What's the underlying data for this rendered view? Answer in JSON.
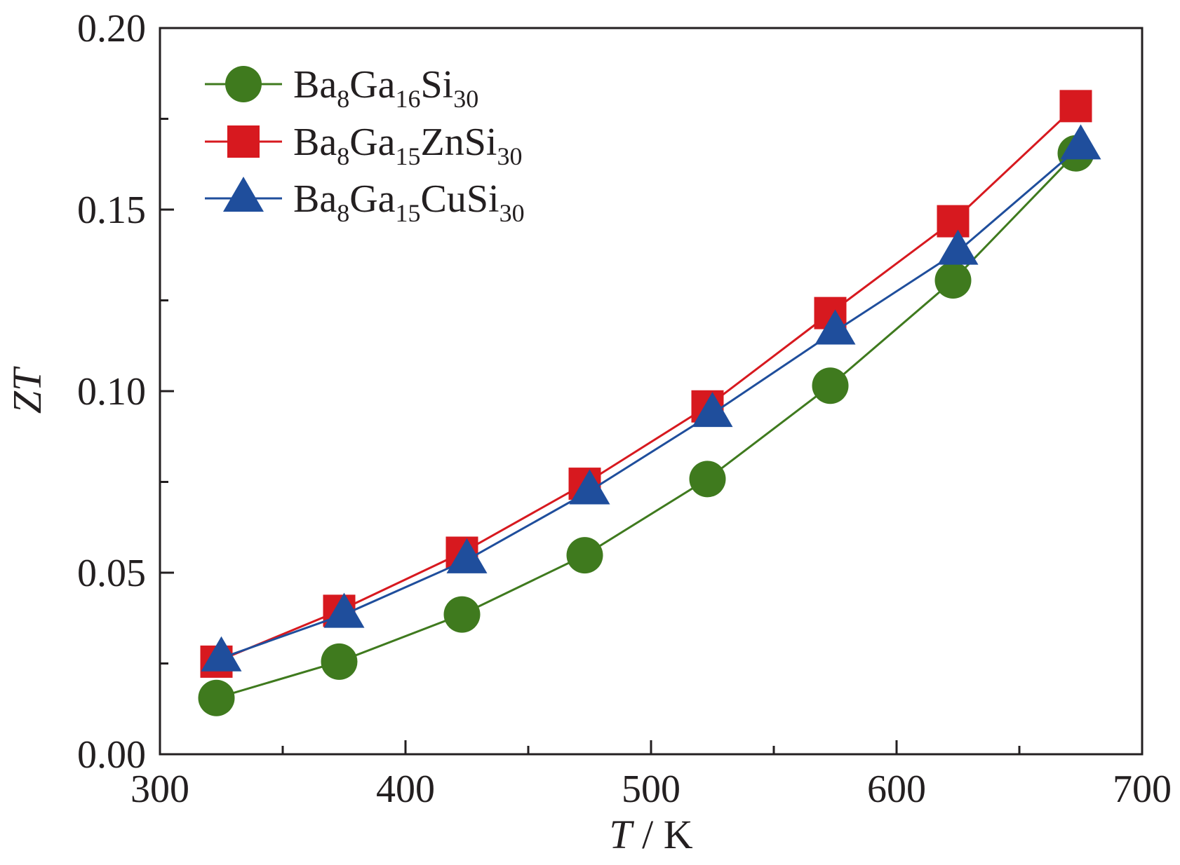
{
  "chart_data": {
    "type": "line",
    "xlabel": {
      "italic": "T",
      "rest": " / K"
    },
    "ylabel": "ZT",
    "xlim": [
      300,
      700
    ],
    "ylim": [
      0,
      0.2
    ],
    "x_major_ticks": [
      300,
      400,
      500,
      600,
      700
    ],
    "x_tick_labels": [
      "300",
      "400",
      "500",
      "600",
      "700"
    ],
    "x_minor_ticks": [
      350,
      450,
      550,
      650
    ],
    "y_major_ticks": [
      0,
      0.05,
      0.1,
      0.15,
      0.2
    ],
    "y_tick_labels": [
      "0.00",
      "0.05",
      "0.10",
      "0.15",
      "0.20"
    ],
    "y_minor_ticks": [
      0.025,
      0.075,
      0.125,
      0.175
    ],
    "grid": false,
    "legend_position": "top-left",
    "series": [
      {
        "label_parts": [
          [
            "Ba",
            "n"
          ],
          [
            "8",
            "sub"
          ],
          [
            "Ga",
            "n"
          ],
          [
            "16",
            "sub"
          ],
          [
            "Si",
            "n"
          ],
          [
            "30",
            "sub"
          ]
        ],
        "marker": "circle",
        "color": "#3f7a1e",
        "x": [
          323,
          373,
          423,
          473,
          523,
          573,
          623,
          673
        ],
        "y": [
          0.0155,
          0.0255,
          0.0385,
          0.0548,
          0.0758,
          0.1015,
          0.1305,
          0.1655
        ]
      },
      {
        "label_parts": [
          [
            "Ba",
            "n"
          ],
          [
            "8",
            "sub"
          ],
          [
            "Ga",
            "n"
          ],
          [
            "15",
            "sub"
          ],
          [
            "ZnSi",
            "n"
          ],
          [
            "30",
            "sub"
          ]
        ],
        "marker": "square",
        "color": "#d7191f",
        "x": [
          323,
          373,
          423,
          473,
          523,
          573,
          623,
          673
        ],
        "y": [
          0.0255,
          0.0395,
          0.0555,
          0.0745,
          0.0958,
          0.1215,
          0.1468,
          0.1785
        ]
      },
      {
        "label_parts": [
          [
            "Ba",
            "n"
          ],
          [
            "8",
            "sub"
          ],
          [
            "Ga",
            "n"
          ],
          [
            "15",
            "sub"
          ],
          [
            "CuSi",
            "n"
          ],
          [
            "30",
            "sub"
          ]
        ],
        "marker": "triangle",
        "color": "#1f4e9c",
        "x": [
          325,
          375,
          425,
          475,
          525,
          575,
          625,
          675
        ],
        "y": [
          0.0265,
          0.0385,
          0.0535,
          0.0725,
          0.0938,
          0.1165,
          0.1385,
          0.1675
        ]
      }
    ]
  }
}
